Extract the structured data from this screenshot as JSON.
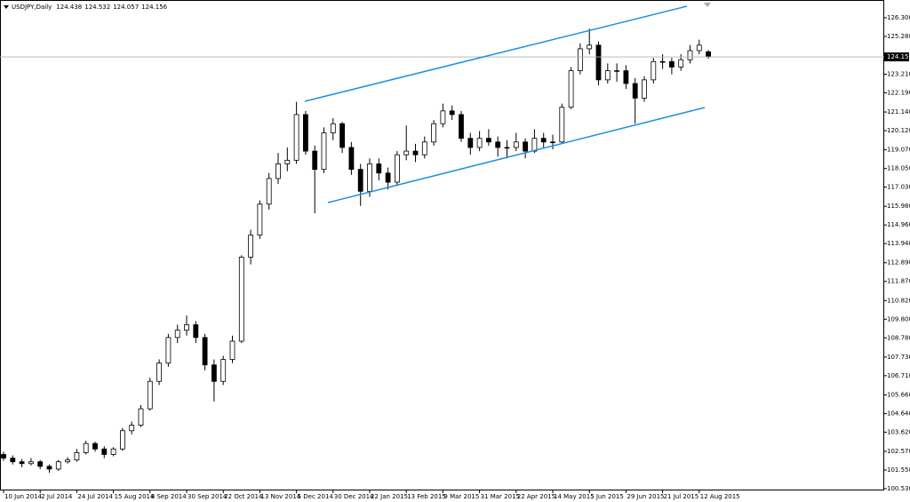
{
  "chart_data": {
    "type": "candlestick",
    "title": "USDJPY,Daily",
    "categories": [
      "10 Jun 2014",
      null,
      null,
      null,
      "2 Jul 2014",
      null,
      null,
      null,
      "24 Jul 2014",
      null,
      null,
      null,
      "15 Aug 2014",
      null,
      null,
      null,
      "8 Sep 2014",
      null,
      null,
      null,
      "30 Sep 2014",
      null,
      null,
      null,
      "22 Oct 2014",
      null,
      null,
      null,
      "13 Nov 2014",
      null,
      null,
      null,
      "5 Dec 2014",
      null,
      null,
      null,
      "30 Dec 2014",
      null,
      null,
      null,
      "22 Jan 2015",
      null,
      null,
      null,
      "13 Feb 2015",
      null,
      null,
      null,
      "9 Mar 2015",
      null,
      null,
      null,
      "31 Mar 2015",
      null,
      null,
      null,
      "22 Apr 2015",
      null,
      null,
      null,
      "14 May 2015",
      null,
      null,
      null,
      "5 Jun 2015",
      null,
      null,
      null,
      "29 Jun 2015",
      null,
      null,
      null,
      "21 Jul 2015",
      null,
      null,
      null,
      "12 Aug 2015",
      null
    ],
    "open": [
      102.4,
      102.2,
      102.0,
      101.9,
      102.0,
      101.75,
      101.6,
      102.0,
      102.1,
      102.5,
      103.0,
      102.7,
      102.4,
      102.7,
      103.7,
      104.0,
      104.9,
      106.4,
      107.4,
      108.8,
      109.2,
      109.5,
      108.8,
      107.3,
      106.4,
      107.6,
      108.6,
      113.2,
      114.4,
      116.1,
      117.5,
      118.3,
      118.5,
      121.0,
      119.0,
      118.0,
      120.0,
      120.5,
      119.2,
      118.0,
      116.8,
      118.3,
      117.8,
      117.3,
      118.8,
      119.0,
      118.8,
      119.5,
      120.5,
      121.2,
      121.0,
      119.7,
      119.2,
      119.7,
      119.5,
      119.2,
      119.2,
      119.5,
      119.0,
      119.7,
      119.5,
      119.5,
      121.4,
      123.4,
      124.6,
      124.8,
      122.9,
      123.4,
      123.4,
      122.7,
      121.9,
      122.9,
      123.9,
      123.9,
      123.6,
      124.0,
      124.5,
      124.438
    ],
    "high": [
      102.55,
      102.35,
      102.15,
      102.2,
      102.1,
      101.85,
      102.1,
      102.25,
      102.7,
      103.15,
      103.1,
      102.85,
      102.8,
      103.85,
      104.2,
      105.1,
      106.6,
      107.6,
      109.0,
      109.5,
      110.0,
      109.7,
      109.0,
      107.6,
      107.8,
      108.9,
      113.3,
      114.7,
      116.3,
      117.8,
      118.9,
      119.2,
      121.7,
      121.2,
      119.3,
      120.3,
      120.8,
      120.6,
      119.5,
      118.3,
      118.6,
      118.6,
      118.1,
      119.0,
      120.4,
      119.4,
      119.8,
      120.7,
      121.6,
      121.5,
      121.2,
      120.0,
      120.1,
      120.2,
      119.8,
      119.6,
      120.0,
      119.7,
      120.2,
      120.0,
      119.9,
      121.6,
      123.6,
      124.9,
      125.7,
      125.0,
      123.8,
      123.8,
      123.7,
      123.0,
      123.1,
      124.1,
      124.3,
      124.1,
      124.3,
      124.8,
      125.1,
      124.532
    ],
    "low": [
      102.05,
      101.85,
      101.7,
      101.8,
      101.6,
      101.4,
      101.5,
      101.9,
      102.0,
      102.4,
      102.55,
      102.2,
      102.3,
      102.6,
      103.5,
      103.9,
      104.8,
      106.2,
      107.2,
      108.5,
      108.9,
      108.5,
      107.0,
      105.3,
      106.2,
      107.4,
      108.5,
      112.8,
      114.2,
      115.8,
      117.2,
      117.9,
      118.3,
      118.8,
      115.6,
      117.8,
      119.6,
      118.9,
      117.7,
      116.0,
      116.5,
      117.4,
      116.9,
      117.1,
      118.5,
      118.4,
      118.6,
      119.3,
      120.3,
      120.7,
      119.5,
      118.8,
      119.0,
      119.3,
      118.7,
      118.6,
      119.0,
      118.6,
      118.9,
      119.2,
      119.1,
      119.4,
      121.3,
      123.2,
      124.3,
      122.6,
      122.7,
      122.8,
      122.4,
      120.5,
      121.7,
      122.7,
      123.5,
      123.2,
      123.4,
      123.8,
      124.3,
      124.057
    ],
    "close": [
      102.2,
      102.0,
      101.9,
      102.0,
      101.75,
      101.6,
      102.0,
      102.1,
      102.5,
      103.0,
      102.7,
      102.4,
      102.7,
      103.7,
      104.0,
      104.9,
      106.4,
      107.4,
      108.8,
      109.2,
      109.5,
      108.8,
      107.3,
      106.4,
      107.6,
      108.6,
      113.2,
      114.4,
      116.1,
      117.5,
      118.3,
      118.5,
      121.0,
      119.0,
      118.0,
      120.0,
      120.5,
      119.2,
      118.0,
      116.8,
      118.3,
      117.8,
      117.3,
      118.8,
      119.0,
      118.8,
      119.5,
      120.5,
      121.2,
      121.0,
      119.7,
      119.2,
      119.7,
      119.5,
      119.2,
      119.2,
      119.5,
      119.0,
      119.7,
      119.5,
      119.5,
      121.4,
      123.4,
      124.6,
      124.8,
      122.9,
      123.4,
      123.4,
      122.7,
      121.9,
      122.9,
      123.9,
      123.9,
      123.6,
      124.0,
      124.5,
      124.8,
      124.156
    ],
    "ylim": [
      100.43,
      127.27
    ],
    "yticks": [
      {
        "value": 126.3,
        "label": "126.300"
      },
      {
        "value": 125.28,
        "label": "125.280"
      },
      {
        "value": 123.21,
        "label": "123.210"
      },
      {
        "value": 122.19,
        "label": "122.190"
      },
      {
        "value": 121.14,
        "label": "121.140"
      },
      {
        "value": 120.12,
        "label": "120.120"
      },
      {
        "value": 119.07,
        "label": "119.070"
      },
      {
        "value": 118.05,
        "label": "118.050"
      },
      {
        "value": 117.03,
        "label": "117.030"
      },
      {
        "value": 115.98,
        "label": "115.980"
      },
      {
        "value": 114.96,
        "label": "114.960"
      },
      {
        "value": 113.94,
        "label": "113.940"
      },
      {
        "value": 112.89,
        "label": "112.890"
      },
      {
        "value": 111.87,
        "label": "111.870"
      },
      {
        "value": 110.82,
        "label": "110.820"
      },
      {
        "value": 109.8,
        "label": "109.800"
      },
      {
        "value": 108.78,
        "label": "108.780"
      },
      {
        "value": 107.73,
        "label": "107.730"
      },
      {
        "value": 106.71,
        "label": "106.710"
      },
      {
        "value": 105.66,
        "label": "105.660"
      },
      {
        "value": 104.64,
        "label": "104.640"
      },
      {
        "value": 103.62,
        "label": "103.620"
      },
      {
        "value": 102.57,
        "label": "102.570"
      },
      {
        "value": 101.55,
        "label": "101.550"
      },
      {
        "value": 100.53,
        "label": "100.530"
      }
    ],
    "up_color": "#ffffff",
    "down_color": "#000000",
    "channel_color": "#1e90e0"
  }
}
